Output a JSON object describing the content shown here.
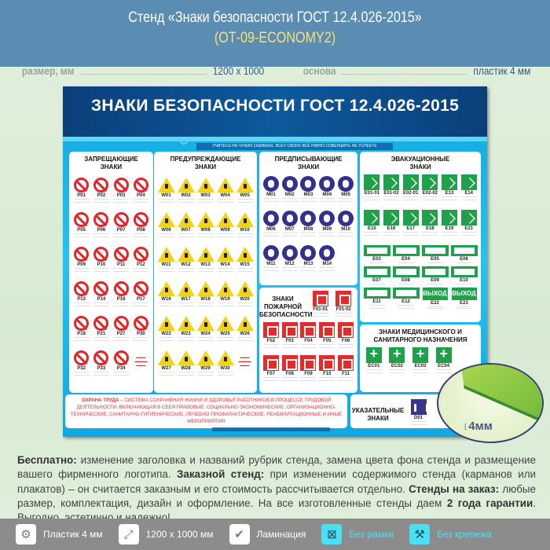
{
  "header": {
    "title": "Стенд «Знаки безопасности ГОСТ 12.4.026-2015»",
    "subtitle": "(ОТ-09-ECONOMY2)"
  },
  "specs": {
    "size_label": "размер, мм",
    "size_value": "1200 х 1000",
    "base_label": "основа",
    "base_value": "пластик 4 мм"
  },
  "stand": {
    "title": "ЗНАКИ БЕЗОПАСНОСТИ ГОСТ 12.4.026-2015",
    "slogan": "УЧИТЕСЬ НА ЧУЖИХ ОШИБКАХ, ВСЕХ СВОИХ ВСЁ РАВНО СОВЕРШИТЬ НЕ УСПЕЕТЕ",
    "sections": {
      "prohibition": {
        "title": "ЗАПРЕЩАЮЩИЕ ЗНАКИ",
        "codes": [
          "P01",
          "P02",
          "P03",
          "P04",
          "P05",
          "P06",
          "P07",
          "P08",
          "P09",
          "P10",
          "P11",
          "P12",
          "P13",
          "P14",
          "P16",
          "P17",
          "P18",
          "P21",
          "P27",
          "P30",
          "P32",
          "P33",
          "P34"
        ]
      },
      "warning": {
        "title": "ПРЕДУПРЕЖДАЮЩИЕ ЗНАКИ",
        "codes": [
          "W01",
          "W02",
          "W03",
          "W04",
          "W05",
          "W06",
          "W07",
          "W08",
          "W09",
          "W10",
          "W11",
          "W12",
          "W13",
          "W14",
          "W15",
          "W16",
          "W17",
          "W18",
          "W19",
          "W20",
          "W22",
          "W23",
          "W24",
          "W25",
          "W26",
          "W27",
          "W28",
          "W29",
          "W30"
        ]
      },
      "mandatory": {
        "title": "ПРЕДПИСЫВАЮЩИЕ ЗНАКИ",
        "codes": [
          "M01",
          "M02",
          "M03",
          "M04",
          "M05",
          "M06",
          "M07",
          "M08",
          "M09",
          "M10",
          "M11",
          "M12",
          "M13",
          "M14"
        ]
      },
      "fire": {
        "title": "ЗНАКИ ПОЖАРНОЙ БЕЗОПАСНОСТИ",
        "codes": [
          "F01-01",
          "F01-02",
          "F02",
          "F03",
          "F04",
          "F05",
          "F06",
          "F07",
          "F08",
          "F09",
          "F10",
          "F11"
        ]
      },
      "evacuation": {
        "title": "ЭВАКУАЦИОННЫЕ ЗНАКИ",
        "codes_square": [
          "E01-01",
          "E01-02",
          "E02-01",
          "E02-02",
          "E13",
          "E14",
          "E15",
          "E16",
          "E17",
          "E18",
          "E19",
          "E21"
        ],
        "codes_wide": [
          "E03",
          "E04",
          "E05",
          "E06",
          "E07",
          "E08",
          "E09",
          "E10",
          "E11",
          "E12",
          "E22",
          "E23"
        ],
        "exit_text": "ВЫХОД"
      },
      "medical": {
        "title": "ЗНАКИ МЕДИЦИНСКОГО И САНИТАРНОГО НАЗНАЧЕНИЯ",
        "codes": [
          "EC01",
          "EC02",
          "EC03",
          "EC04"
        ]
      },
      "pointer": {
        "title": "УКАЗАТЕЛЬНЫЕ ЗНАКИ",
        "codes": [
          "D01"
        ]
      }
    },
    "ohrana_lead": "ОХРАНА ТРУДА –",
    "ohrana_text": "СИСТЕМА СОХРАНЕНИЯ ЖИЗНИ И ЗДОРОВЬЯ РАБОТНИКОВ В ПРОЦЕССЕ ТРУДОВОЙ ДЕЯТЕЛЬНОСТИ, ВКЛЮЧАЮЩАЯ В СЕБЯ ПРАВОВЫЕ, СОЦИАЛЬНО-ЭКОНОМИЧЕСКИЕ, ОРГАНИЗАЦИОННО-ТЕХНИЧЕСКИЕ, САНИТАРНО-ГИГИЕНИЧЕСКИЕ, ЛЕЧЕБНО-ПРОФИЛАКТИЧЕСКИЕ, РЕАБИЛИТАЦИОННЫЕ И ИНЫЕ МЕРОПРИЯТИЯ"
  },
  "thickness": "4мм",
  "description": {
    "b1": "Бесплатно:",
    "t1": " изменение заголовка и названий рубрик стенда, замена цвета фона стенда и размещение вашего фирменного логотипа. ",
    "b2": "Заказной стенд:",
    "t2": " при изменении содержимого стенда (карманов или плакатов) – он считается заказным и его стоимость рассчитывается отдельно. ",
    "b3": "Стенды на заказ:",
    "t3": " любые размер, комплектация, дизайн и оформление. На все изготовленные стенды даем ",
    "b4": "2 года гарантии",
    "t4": ". Выгодно, эстетично и надежно!"
  },
  "features": [
    {
      "label": "Пластик 4 мм",
      "icon": "gear-icon"
    },
    {
      "label": "1200 х 1000 мм",
      "icon": "expand-icon"
    },
    {
      "label": "Ламинация",
      "icon": "shield-check-icon"
    },
    {
      "label": "Без рамки",
      "icon": "no-frame-icon"
    },
    {
      "label": "Без крепежа",
      "icon": "screw-icon"
    }
  ],
  "colors": {
    "header": "#5b8db2",
    "subtitle": "#f7e27a",
    "accent_cyan": "#48e1f4",
    "prohibition": "#e0262b",
    "warning": "#f3d31a",
    "mandatory": "#33318a",
    "fire": "#e42a2a",
    "evacuation": "#1ea14a"
  }
}
